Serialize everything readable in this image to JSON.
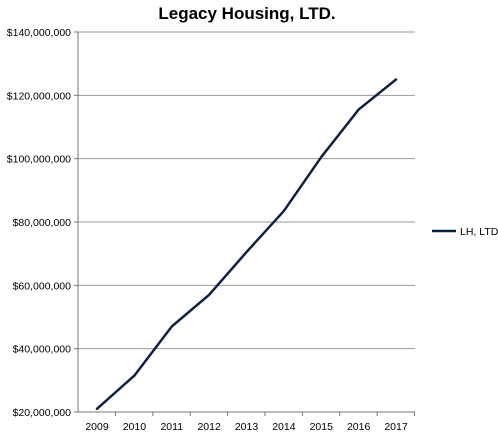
{
  "chart_data": {
    "type": "line",
    "title": "Legacy Housing, LTD.",
    "categories": [
      "2009",
      "2010",
      "2011",
      "2012",
      "2013",
      "2014",
      "2015",
      "2016",
      "2017"
    ],
    "series": [
      {
        "name": "LH, LTD",
        "color": "#0f2140",
        "values": [
          21000000,
          31500000,
          47000000,
          57000000,
          70500000,
          83500000,
          100500000,
          115500000,
          125000000
        ]
      }
    ],
    "ylim": [
      20000000,
      140000000
    ],
    "y_ticks": [
      "$20,000,000",
      "$40,000,000",
      "$60,000,000",
      "$80,000,000",
      "$100,000,000",
      "$120,000,000",
      "$140,000,000"
    ],
    "grid": true,
    "legend_position": "right"
  }
}
